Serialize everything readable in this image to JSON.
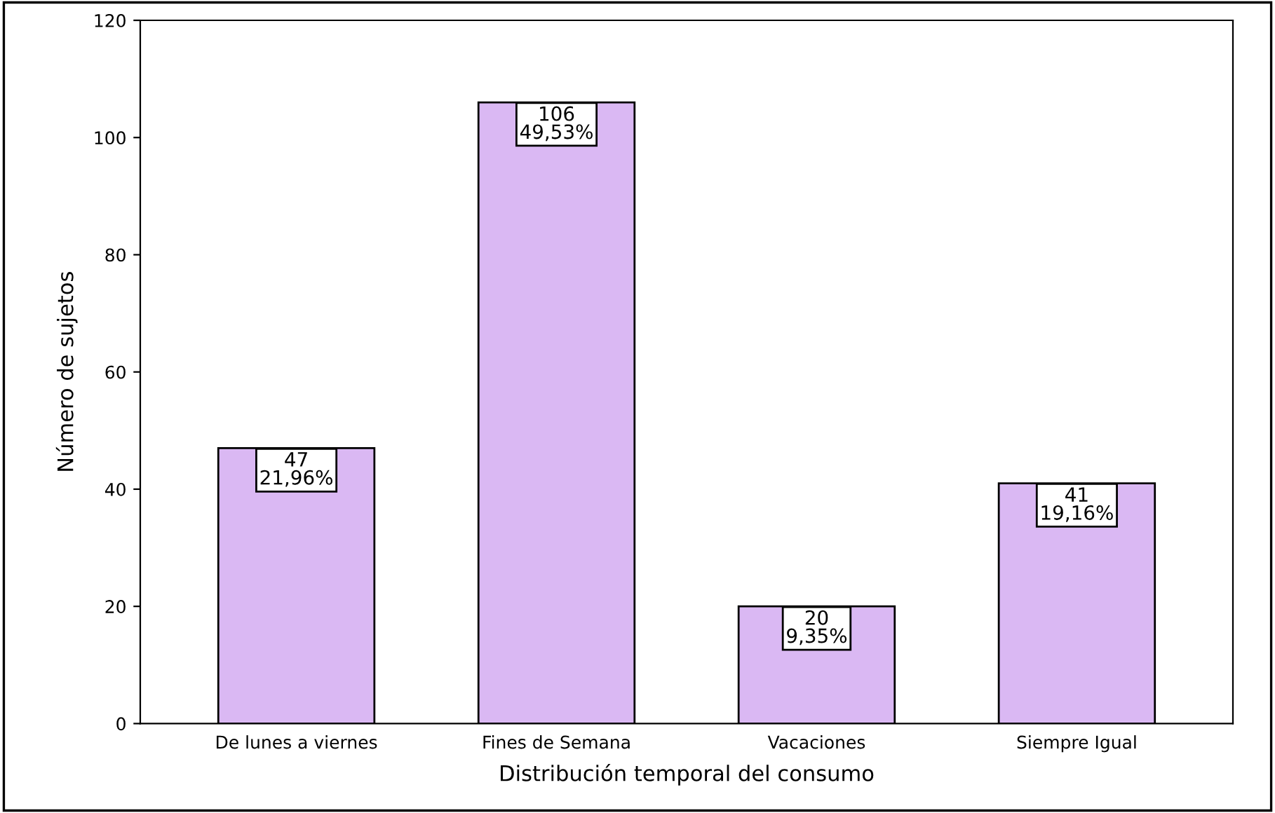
{
  "chart_data": {
    "type": "bar",
    "xlabel": "Distribución temporal del consumo",
    "ylabel": "Número de sujetos",
    "categories": [
      "De lunes a viernes",
      "Fines de Semana",
      "Vacaciones",
      "Siempre Igual"
    ],
    "values": [
      47,
      106,
      20,
      41
    ],
    "color": "#dab8f3",
    "value_labels": [
      "47\n21,96%",
      "106\n49,53%",
      "20\n9,35%",
      "41\n19,16%"
    ],
    "ylim": [
      0,
      120
    ],
    "yticks": [
      0,
      20,
      40,
      60,
      80,
      100,
      120
    ],
    "grid": false,
    "legend": false
  }
}
